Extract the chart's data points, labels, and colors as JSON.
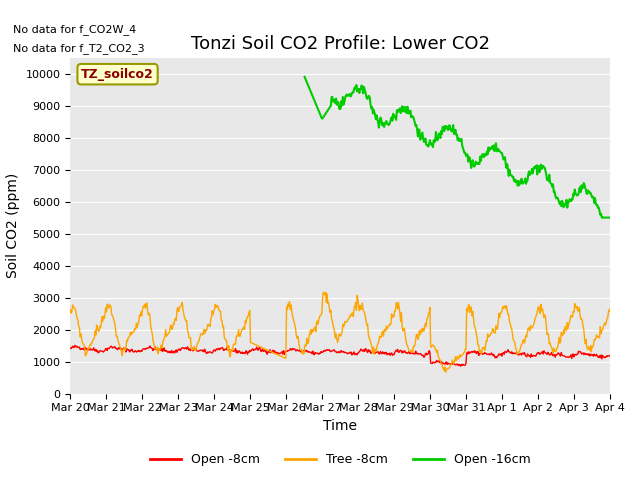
{
  "title": "Tonzi Soil CO2 Profile: Lower CO2",
  "ylabel": "Soil CO2 (ppm)",
  "xlabel": "Time",
  "no_data_text1": "No data for f_CO2W_4",
  "no_data_text2": "No data for f_T2_CO2_3",
  "legend_box_text": "TZ_soilco2",
  "legend_box_bg": "#ffffcc",
  "legend_box_border": "#999900",
  "legend_box_text_color": "#8b0000",
  "ylim": [
    0,
    10500
  ],
  "yticks": [
    0,
    1000,
    2000,
    3000,
    4000,
    5000,
    6000,
    7000,
    8000,
    9000,
    10000
  ],
  "bg_color": "#e8e8e8",
  "line_red": "#ff0000",
  "line_orange": "#ffa500",
  "line_green": "#00cc00",
  "title_fontsize": 13,
  "axis_label_fontsize": 10,
  "tick_fontsize": 8,
  "xtick_labels": [
    "Mar 20",
    "Mar 21",
    "Mar 22",
    "Mar 23",
    "Mar 24",
    "Mar 25",
    "Mar 26",
    "Mar 27",
    "Mar 28",
    "Mar 29",
    "Mar 30",
    "Mar 31",
    "Apr 1",
    "Apr 2",
    "Apr 3",
    "Apr 4"
  ],
  "xtick_positions": [
    0,
    1,
    2,
    3,
    4,
    5,
    6,
    7,
    8,
    9,
    10,
    11,
    12,
    13,
    14,
    15
  ],
  "n_days": 15,
  "legend_entries": [
    "Open -8cm",
    "Tree -8cm",
    "Open -16cm"
  ],
  "legend_colors": [
    "#ff0000",
    "#ffa500",
    "#00cc00"
  ]
}
